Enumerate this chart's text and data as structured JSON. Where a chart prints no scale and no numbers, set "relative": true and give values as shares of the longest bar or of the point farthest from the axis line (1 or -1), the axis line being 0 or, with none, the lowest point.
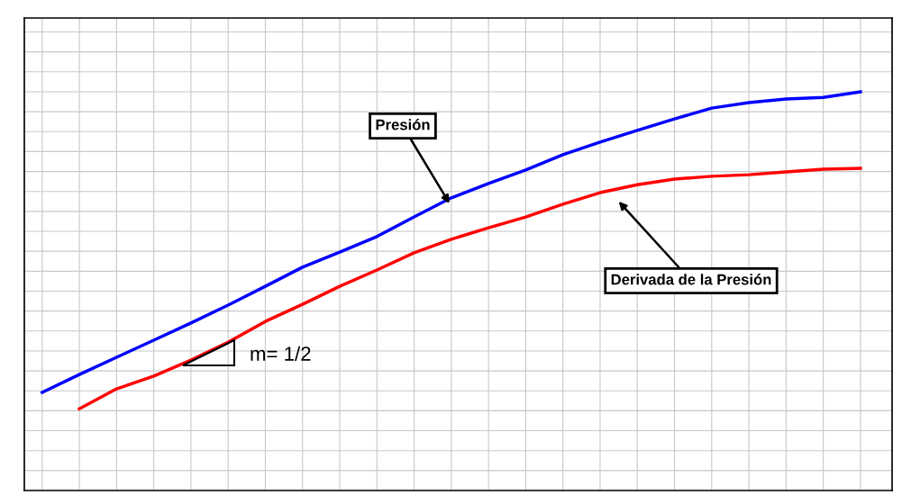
{
  "chart_data": {
    "type": "line",
    "relative": true,
    "grid": true,
    "legend": false,
    "categories": [
      null,
      null,
      null,
      null,
      null,
      null,
      null,
      null,
      null,
      null,
      null,
      null,
      null,
      null,
      null,
      null,
      null,
      null,
      null,
      null,
      null,
      null,
      null
    ],
    "series": [
      {
        "color": "#0000ff",
        "values": [
          0.246,
          0.291,
          0.334,
          0.377,
          0.42,
          0.465,
          0.512,
          0.56,
          0.598,
          0.637,
          0.686,
          0.734,
          0.77,
          0.804,
          0.842,
          0.874,
          0.903,
          0.932,
          0.959,
          0.973,
          0.982,
          0.986,
          1.0
        ]
      },
      {
        "color": "#ff0000",
        "values": [
          null,
          0.205,
          0.255,
          0.287,
          0.327,
          0.372,
          0.424,
          0.467,
          0.512,
          0.553,
          0.596,
          0.63,
          0.659,
          0.686,
          0.718,
          0.747,
          0.767,
          0.781,
          0.788,
          0.792,
          0.799,
          0.806,
          0.808
        ]
      }
    ],
    "annotations": [
      "Presión",
      "Derivada de la Presión",
      "m= 1/2"
    ]
  }
}
